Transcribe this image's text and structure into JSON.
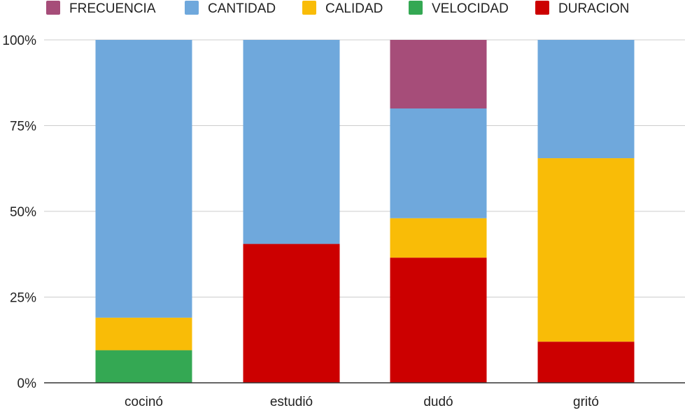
{
  "chart_data": {
    "type": "bar",
    "stacked": true,
    "percent_stacked": true,
    "categories": [
      "cocinó",
      "estudió",
      "dudó",
      "gritó"
    ],
    "series": [
      {
        "name": "FRECUENCIA",
        "color": "#a64d79",
        "values": [
          0,
          0,
          20,
          0
        ]
      },
      {
        "name": "CANTIDAD",
        "color": "#6fa8dc",
        "values": [
          81,
          59.5,
          32,
          34.5
        ]
      },
      {
        "name": "CALIDAD",
        "color": "#f9bc07",
        "values": [
          9.5,
          0,
          11.5,
          53.5
        ]
      },
      {
        "name": "VELOCIDAD",
        "color": "#34a853",
        "values": [
          9.5,
          0,
          0,
          0
        ]
      },
      {
        "name": "DURACION",
        "color": "#cc0000",
        "values": [
          0,
          40.5,
          36.5,
          12
        ]
      }
    ],
    "stack_order_bottom_to_top": [
      "DURACION",
      "VELOCIDAD",
      "CALIDAD",
      "CANTIDAD",
      "FRECUENCIA"
    ],
    "y_ticks": [
      "0%",
      "25%",
      "50%",
      "75%",
      "100%"
    ],
    "ylim": [
      0,
      100
    ],
    "grid": true,
    "legend_position": "top"
  }
}
